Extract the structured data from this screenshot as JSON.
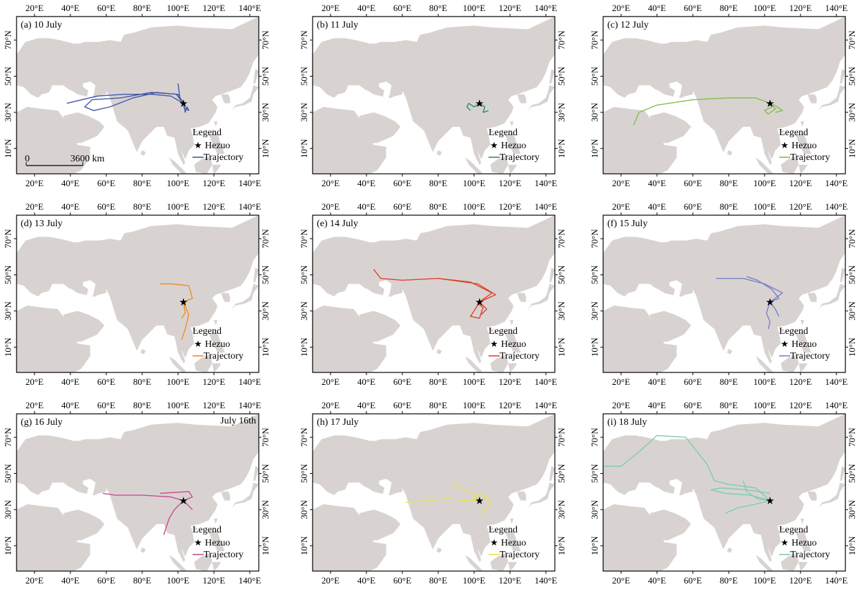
{
  "colors": {
    "land": "#d8d3d1",
    "sea": "#ffffff",
    "frame": "#000000"
  },
  "axes": {
    "lon_ticks": [
      "20°E",
      "40°E",
      "60°E",
      "80°E",
      "100°E",
      "120°E",
      "140°E"
    ],
    "lon_values": [
      20,
      40,
      60,
      80,
      100,
      120,
      140
    ],
    "lat_ticks": [
      "10°N",
      "30°N",
      "50°N",
      "70°N"
    ],
    "lat_values": [
      10,
      30,
      50,
      70
    ],
    "xlim": [
      10,
      145
    ],
    "ylim": [
      -4,
      83
    ]
  },
  "station": {
    "name": "Hezuo",
    "lon": 103,
    "lat": 35
  },
  "legend": {
    "title": "Legend",
    "station_label": "Hezuo",
    "trajectory_label": "Trajectory"
  },
  "scalebar": {
    "start_label": "0",
    "end_label": "3600 km"
  },
  "panels": [
    {
      "title": "(a) 10 July",
      "color": "#3f56a8",
      "trajectories": [
        [
          [
            103,
            35
          ],
          [
            96,
            39
          ],
          [
            85,
            40
          ],
          [
            70,
            40
          ],
          [
            55,
            39
          ],
          [
            38,
            35
          ]
        ],
        [
          [
            103,
            35
          ],
          [
            99,
            40
          ],
          [
            88,
            41
          ],
          [
            75,
            38
          ],
          [
            62,
            33
          ],
          [
            53,
            31
          ],
          [
            48,
            33
          ],
          [
            52,
            37
          ],
          [
            68,
            38
          ],
          [
            85,
            41
          ],
          [
            100,
            40
          ],
          [
            103,
            35
          ]
        ],
        [
          [
            103,
            35
          ],
          [
            101,
            38
          ],
          [
            100,
            46
          ]
        ],
        [
          [
            103,
            35
          ],
          [
            104,
            30
          ],
          [
            105,
            33
          ],
          [
            106,
            31
          ],
          [
            103,
            33
          ]
        ]
      ]
    },
    {
      "title": "(b) 11 July",
      "color": "#2e8b6b",
      "trajectories": [
        [
          [
            103,
            35
          ],
          [
            100,
            33
          ],
          [
            97,
            35
          ],
          [
            96,
            33
          ],
          [
            98,
            31
          ]
        ],
        [
          [
            103,
            35
          ],
          [
            106,
            33
          ],
          [
            105,
            30
          ],
          [
            108,
            31
          ]
        ]
      ]
    },
    {
      "title": "(c) 12 July",
      "color": "#7cc04a",
      "trajectories": [
        [
          [
            103,
            35
          ],
          [
            95,
            38
          ],
          [
            80,
            38
          ],
          [
            60,
            37
          ],
          [
            40,
            34
          ],
          [
            30,
            30
          ],
          [
            27,
            23
          ]
        ],
        [
          [
            103,
            35
          ],
          [
            106,
            32
          ],
          [
            102,
            29
          ],
          [
            100,
            31
          ],
          [
            104,
            33
          ]
        ],
        [
          [
            103,
            35
          ],
          [
            107,
            33
          ],
          [
            110,
            31
          ],
          [
            106,
            30
          ]
        ]
      ]
    },
    {
      "title": "(d) 13 July",
      "color": "#f28b1f",
      "trajectories": [
        [
          [
            103,
            35
          ],
          [
            108,
            37
          ],
          [
            106,
            44
          ],
          [
            96,
            45
          ],
          [
            90,
            45
          ]
        ],
        [
          [
            103,
            35
          ],
          [
            104,
            29
          ],
          [
            102,
            26
          ]
        ],
        [
          [
            103,
            35
          ],
          [
            106,
            28
          ],
          [
            104,
            20
          ],
          [
            102,
            14
          ]
        ]
      ]
    },
    {
      "title": "(e) 14 July",
      "color": "#e2402a",
      "trajectories": [
        [
          [
            103,
            35
          ],
          [
            112,
            39
          ],
          [
            102,
            45
          ],
          [
            80,
            48
          ],
          [
            60,
            47
          ],
          [
            48,
            48
          ],
          [
            44,
            53
          ]
        ],
        [
          [
            103,
            35
          ],
          [
            110,
            40
          ],
          [
            98,
            46
          ],
          [
            80,
            48
          ]
        ],
        [
          [
            103,
            35
          ],
          [
            100,
            30
          ],
          [
            98,
            27
          ],
          [
            103,
            26
          ],
          [
            105,
            32
          ],
          [
            102,
            34
          ]
        ],
        [
          [
            103,
            35
          ],
          [
            107,
            31
          ],
          [
            104,
            28
          ]
        ]
      ]
    },
    {
      "title": "(f) 15 July",
      "color": "#7a7fc9",
      "trajectories": [
        [
          [
            103,
            35
          ],
          [
            110,
            40
          ],
          [
            100,
            45
          ],
          [
            88,
            48
          ],
          [
            73,
            48
          ]
        ],
        [
          [
            103,
            35
          ],
          [
            108,
            37
          ],
          [
            104,
            42
          ],
          [
            96,
            47
          ],
          [
            90,
            49
          ]
        ],
        [
          [
            103,
            35
          ],
          [
            101,
            29
          ],
          [
            103,
            24
          ],
          [
            102,
            20
          ]
        ],
        [
          [
            103,
            35
          ],
          [
            106,
            31
          ],
          [
            108,
            27
          ]
        ]
      ]
    },
    {
      "title": "(g) 16 July",
      "color": "#c94a94",
      "annotation": "July 16th",
      "trajectories": [
        [
          [
            103,
            35
          ],
          [
            96,
            37
          ],
          [
            80,
            38
          ],
          [
            65,
            38
          ],
          [
            58,
            39
          ]
        ],
        [
          [
            103,
            35
          ],
          [
            108,
            37
          ],
          [
            106,
            40
          ],
          [
            90,
            39
          ]
        ],
        [
          [
            103,
            35
          ],
          [
            98,
            30
          ],
          [
            95,
            25
          ],
          [
            92,
            16
          ]
        ],
        [
          [
            103,
            35
          ],
          [
            106,
            32
          ],
          [
            108,
            30
          ]
        ]
      ]
    },
    {
      "title": "(h) 17 July",
      "color": "#ece04f",
      "trajectories": [
        [
          [
            103,
            35
          ],
          [
            95,
            35
          ],
          [
            85,
            36
          ],
          [
            75,
            35
          ],
          [
            62,
            34
          ]
        ],
        [
          [
            103,
            35
          ],
          [
            99,
            39
          ],
          [
            92,
            42
          ],
          [
            88,
            45
          ]
        ],
        [
          [
            103,
            35
          ],
          [
            107,
            37
          ],
          [
            109,
            34
          ],
          [
            106,
            30
          ],
          [
            105,
            26
          ]
        ],
        [
          [
            103,
            35
          ],
          [
            100,
            37
          ],
          [
            104,
            39
          ],
          [
            108,
            36
          ]
        ]
      ]
    },
    {
      "title": "(i) 18 July",
      "color": "#7dcbb0",
      "trajectories": [
        [
          [
            103,
            35
          ],
          [
            95,
            42
          ],
          [
            80,
            44
          ],
          [
            72,
            46
          ],
          [
            68,
            55
          ],
          [
            56,
            70
          ],
          [
            40,
            71
          ],
          [
            30,
            62
          ],
          [
            20,
            54
          ],
          [
            10,
            54
          ]
        ],
        [
          [
            103,
            35
          ],
          [
            92,
            38
          ],
          [
            78,
            39
          ],
          [
            70,
            41
          ],
          [
            76,
            42
          ],
          [
            90,
            41
          ],
          [
            103,
            39
          ]
        ],
        [
          [
            103,
            35
          ],
          [
            95,
            33
          ],
          [
            85,
            31
          ],
          [
            78,
            28
          ]
        ],
        [
          [
            103,
            35
          ],
          [
            96,
            36
          ],
          [
            90,
            40
          ],
          [
            88,
            46
          ]
        ]
      ]
    }
  ]
}
